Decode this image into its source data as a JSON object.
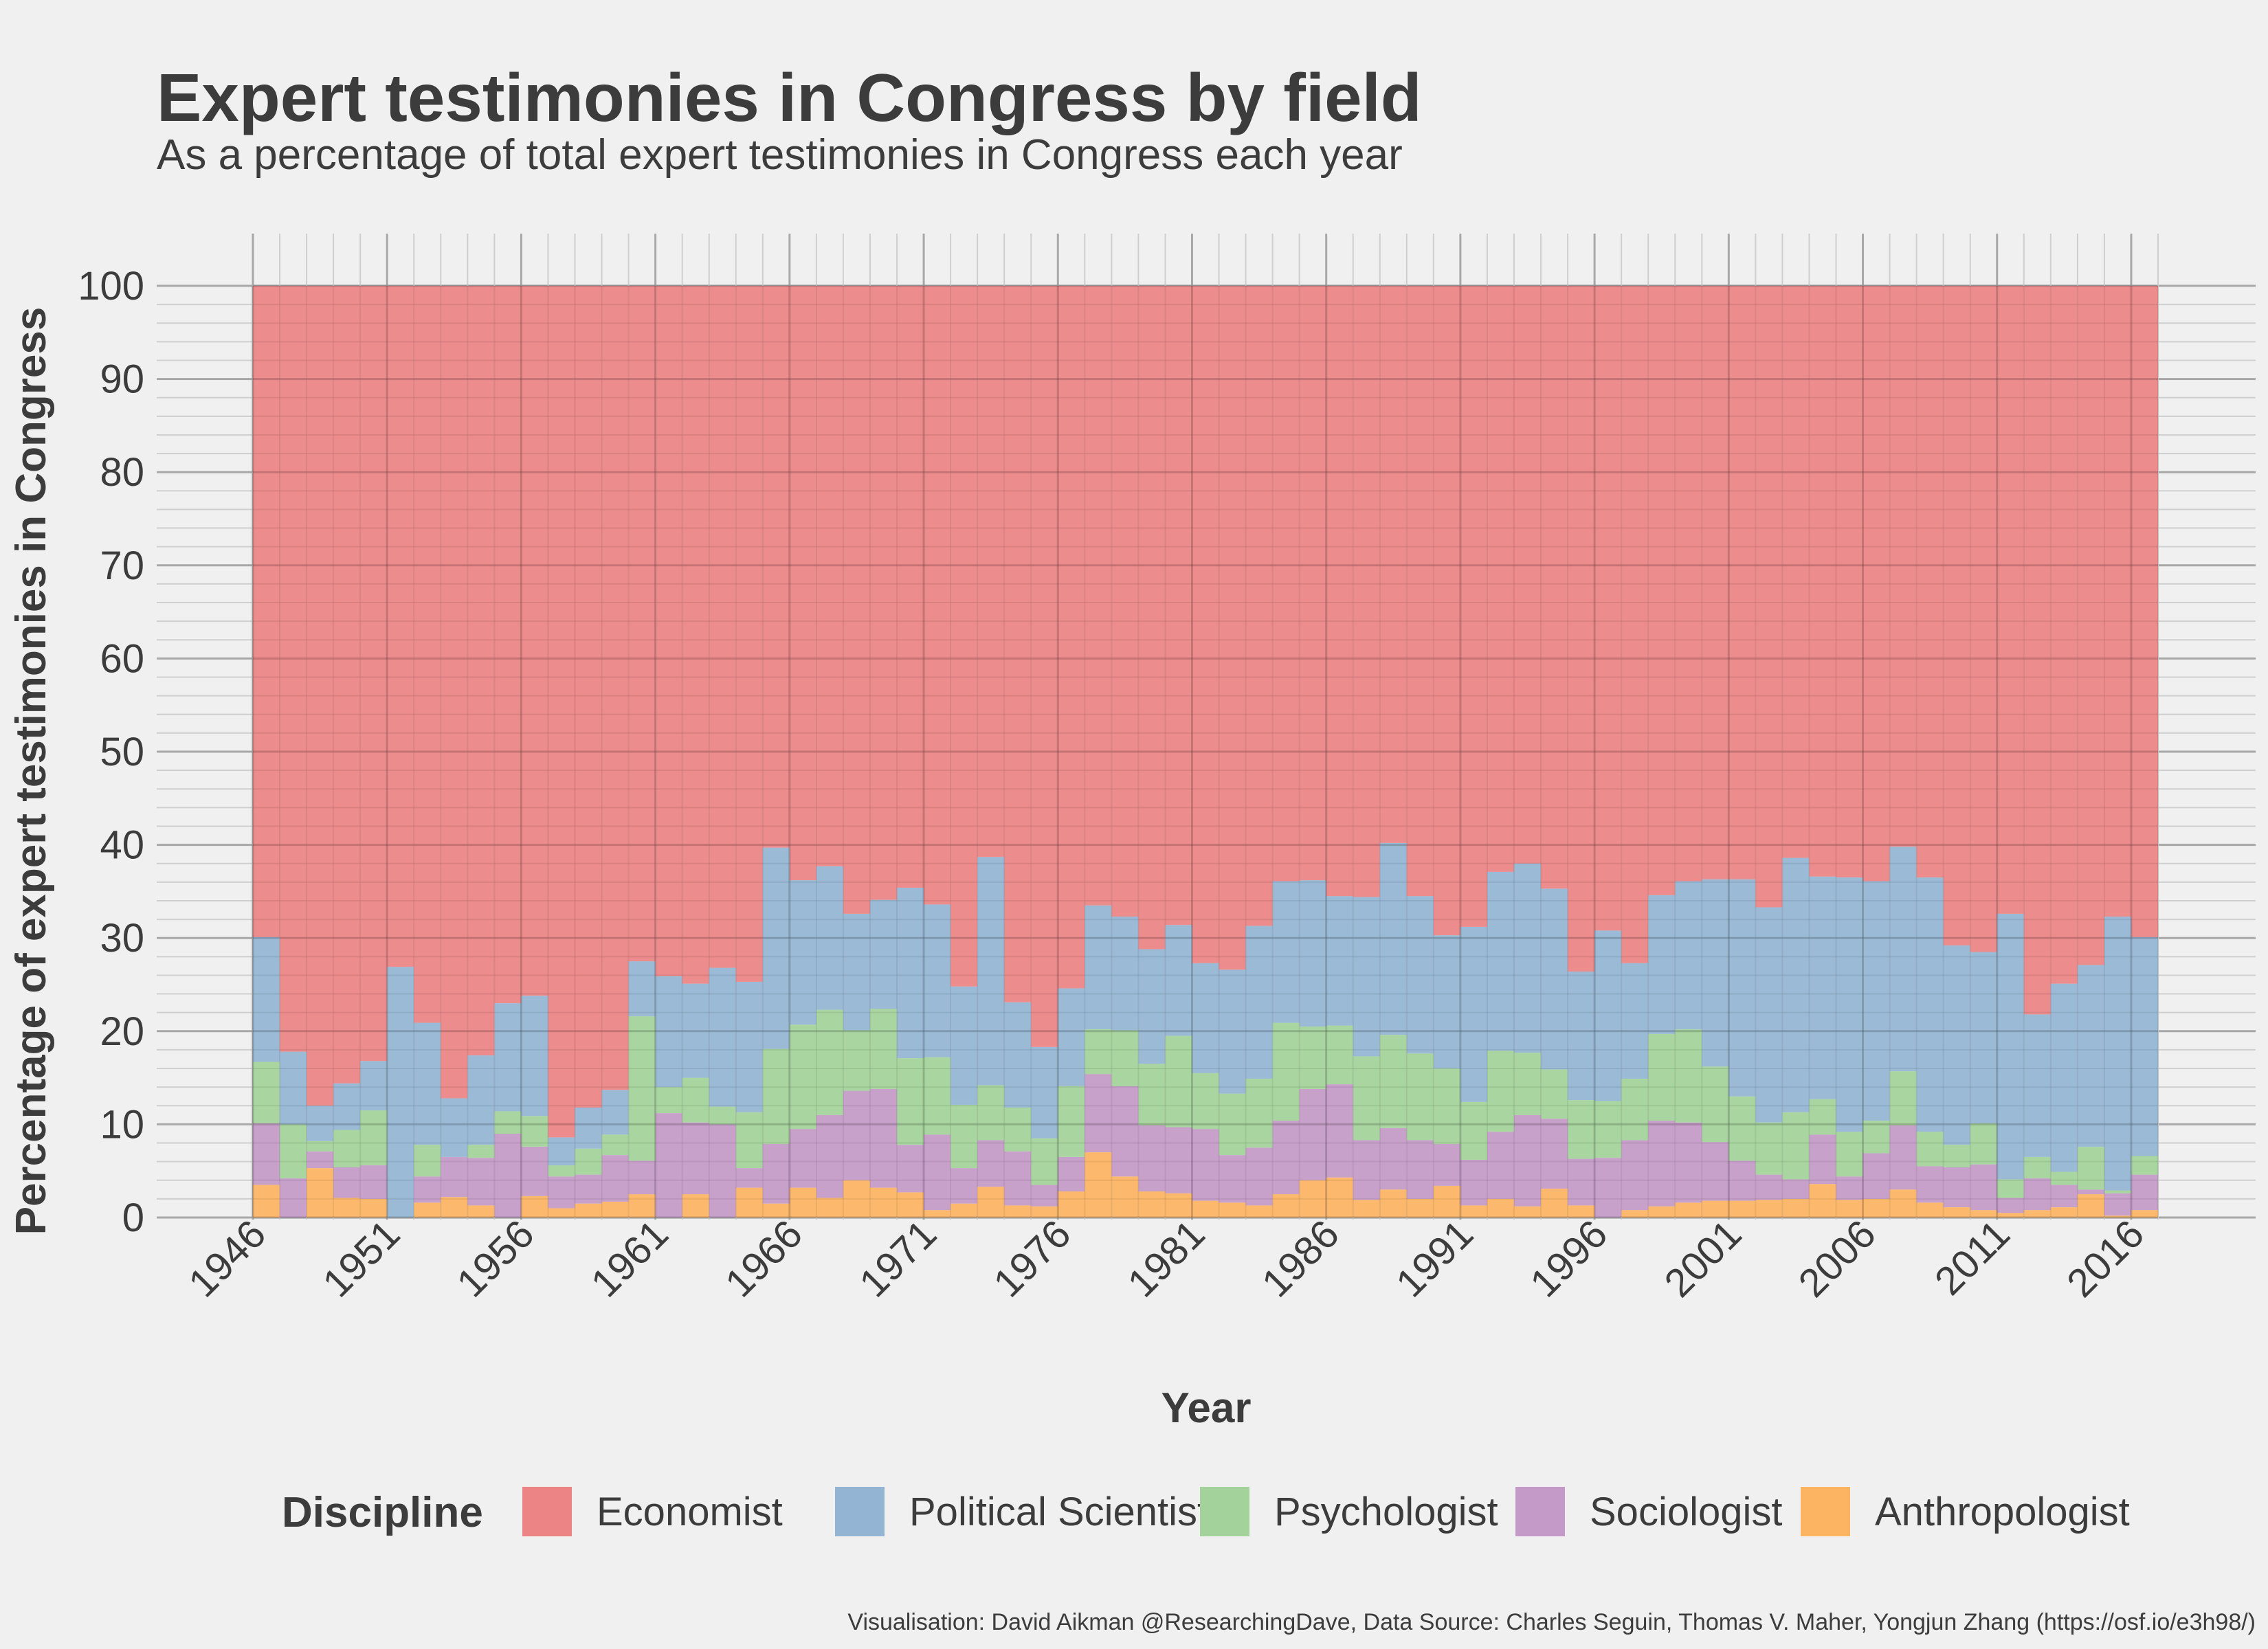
{
  "chart_data": {
    "type": "area",
    "stacked": true,
    "title": "Expert testimonies in Congress by field",
    "subtitle": "As a percentage of total expert testimonies in Congress each year",
    "xlabel": "Year",
    "ylabel": "Percentage of expert testimonies in Congress",
    "legend_title": "Discipline",
    "legend_position": "bottom",
    "caption": "Visualisation: David Aikman @ResearchingDave, Data Source: Charles Seguin, Thomas V. Maher, Yongjun Zhang (https://osf.io/e3h98/)",
    "grid": true,
    "xlim": [
      1946,
      2017
    ],
    "ylim": [
      0,
      100
    ],
    "x_ticks": [
      1946,
      1951,
      1956,
      1961,
      1966,
      1971,
      1976,
      1981,
      1986,
      1991,
      1996,
      2001,
      2006,
      2011,
      2016
    ],
    "y_ticks": [
      0,
      10,
      20,
      30,
      40,
      50,
      60,
      70,
      80,
      90,
      100
    ],
    "x": [
      1946,
      1947,
      1948,
      1949,
      1950,
      1951,
      1952,
      1953,
      1954,
      1955,
      1956,
      1957,
      1958,
      1959,
      1960,
      1961,
      1962,
      1963,
      1964,
      1965,
      1966,
      1967,
      1968,
      1969,
      1970,
      1971,
      1972,
      1973,
      1974,
      1975,
      1976,
      1977,
      1978,
      1979,
      1980,
      1981,
      1982,
      1983,
      1984,
      1985,
      1986,
      1987,
      1988,
      1989,
      1990,
      1991,
      1992,
      1993,
      1994,
      1995,
      1996,
      1997,
      1998,
      1999,
      2000,
      2001,
      2002,
      2003,
      2004,
      2005,
      2006,
      2007,
      2008,
      2009,
      2010,
      2011,
      2012,
      2013,
      2014,
      2015,
      2016
    ],
    "series": [
      {
        "name": "Anthropologist",
        "color": "#fdb462",
        "values": [
          3.5,
          0,
          5.3,
          2.1,
          2.0,
          0,
          1.6,
          2.2,
          1.3,
          0,
          2.3,
          1.0,
          1.5,
          1.7,
          2.5,
          0,
          2.5,
          0,
          3.2,
          1.5,
          3.2,
          2.1,
          4.0,
          3.2,
          2.7,
          0.8,
          1.5,
          3.3,
          1.3,
          1.2,
          2.8,
          7.0,
          4.4,
          2.8,
          2.6,
          1.8,
          1.6,
          1.3,
          2.5,
          4.0,
          4.3,
          1.9,
          3.0,
          2.0,
          3.4,
          1.3,
          2.0,
          1.2,
          3.1,
          1.3,
          0,
          0.8,
          1.2,
          1.6,
          1.8,
          1.8,
          1.9,
          2.0,
          3.6,
          1.9,
          2.0,
          3.0,
          1.6,
          1.1,
          0.8,
          0.5,
          0.8,
          1.1,
          2.5,
          0.2,
          0.8
        ]
      },
      {
        "name": "Sociologist",
        "color": "#c49ac8",
        "values": [
          6.6,
          4.2,
          1.8,
          3.3,
          3.6,
          0,
          2.8,
          4.3,
          5.1,
          9.0,
          5.3,
          3.4,
          3.1,
          5.0,
          3.6,
          11.2,
          7.7,
          10.0,
          2.1,
          6.4,
          6.3,
          8.9,
          9.6,
          10.6,
          5.1,
          8.1,
          3.8,
          5.0,
          5.8,
          2.3,
          3.7,
          8.4,
          9.7,
          7.1,
          7.1,
          7.7,
          5.1,
          6.2,
          7.9,
          9.8,
          10.0,
          6.4,
          6.6,
          6.3,
          4.5,
          4.9,
          7.2,
          9.8,
          7.5,
          5.0,
          6.4,
          7.5,
          9.2,
          8.6,
          6.3,
          4.3,
          2.7,
          2.1,
          5.3,
          2.5,
          4.9,
          6.9,
          3.9,
          4.3,
          4.9,
          1.6,
          3.4,
          2.4,
          0.5,
          2.4,
          3.8
        ]
      },
      {
        "name": "Psychologist",
        "color": "#a3d39a",
        "values": [
          6.6,
          5.8,
          1.1,
          4.0,
          5.9,
          0,
          3.4,
          0,
          1.4,
          2.4,
          3.3,
          1.2,
          2.8,
          2.2,
          15.5,
          2.8,
          4.8,
          1.9,
          6.0,
          10.2,
          11.2,
          11.3,
          6.5,
          8.6,
          9.3,
          8.3,
          6.8,
          5.9,
          4.7,
          5.0,
          7.6,
          4.8,
          6.0,
          6.6,
          9.8,
          6.0,
          6.6,
          7.4,
          10.5,
          6.7,
          6.3,
          9.0,
          10.0,
          9.3,
          8.1,
          6.2,
          8.7,
          6.7,
          5.3,
          6.3,
          6.1,
          6.6,
          9.3,
          10.0,
          8.1,
          6.9,
          5.6,
          7.2,
          3.8,
          4.8,
          3.5,
          5.8,
          3.7,
          2.4,
          4.4,
          2.0,
          2.3,
          1.4,
          4.6,
          0.3,
          2.0
        ]
      },
      {
        "name": "Political Scientist",
        "color": "#93b5d3",
        "values": [
          13.4,
          7.8,
          3.8,
          5.0,
          5.3,
          26.9,
          13.1,
          6.3,
          9.6,
          11.6,
          12.9,
          3.0,
          4.4,
          4.8,
          5.9,
          11.9,
          10.1,
          14.9,
          14.0,
          21.6,
          15.5,
          15.4,
          12.5,
          11.7,
          18.3,
          16.4,
          12.7,
          24.5,
          11.3,
          9.8,
          10.5,
          13.3,
          12.2,
          12.3,
          11.9,
          11.8,
          13.3,
          16.4,
          15.2,
          15.7,
          13.9,
          17.1,
          20.6,
          16.9,
          14.3,
          18.8,
          19.2,
          20.3,
          19.4,
          13.8,
          18.3,
          12.4,
          14.9,
          15.9,
          20.1,
          23.3,
          23.1,
          27.3,
          23.9,
          27.3,
          25.7,
          24.1,
          27.3,
          21.4,
          18.4,
          28.5,
          15.3,
          20.2,
          19.5,
          29.4,
          23.5
        ]
      },
      {
        "name": "Economist",
        "color": "#ec8384",
        "values": [
          69.9,
          82.2,
          88.0,
          85.6,
          83.2,
          73.1,
          79.1,
          87.2,
          82.6,
          77.0,
          76.2,
          91.4,
          88.2,
          86.3,
          72.5,
          74.1,
          74.9,
          73.2,
          74.7,
          60.3,
          63.8,
          62.3,
          67.4,
          65.9,
          64.6,
          66.4,
          75.2,
          61.3,
          76.9,
          81.7,
          75.4,
          66.5,
          67.7,
          71.2,
          68.6,
          72.7,
          73.4,
          68.7,
          63.9,
          63.8,
          65.5,
          65.6,
          59.8,
          65.5,
          69.7,
          68.8,
          62.9,
          62.0,
          64.7,
          73.6,
          69.2,
          72.7,
          65.4,
          63.9,
          63.7,
          63.7,
          66.7,
          61.4,
          63.4,
          63.5,
          63.9,
          60.2,
          63.5,
          70.8,
          71.5,
          67.4,
          78.2,
          74.9,
          72.9,
          67.7,
          69.9
        ]
      }
    ],
    "legend_order": [
      "Economist",
      "Political Scientist",
      "Psychologist",
      "Sociologist",
      "Anthropologist"
    ]
  }
}
